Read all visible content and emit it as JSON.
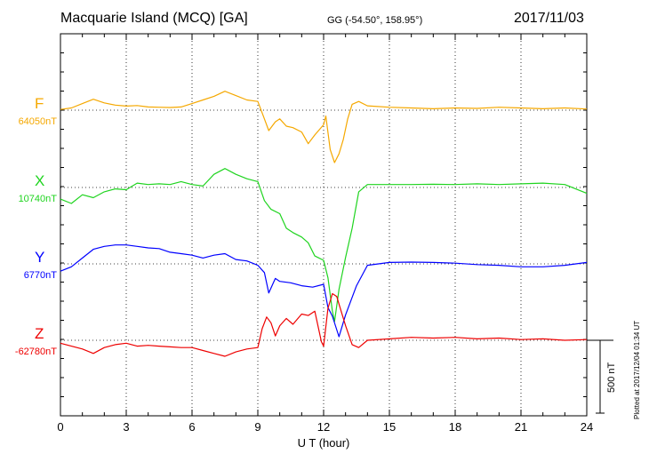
{
  "header": {
    "station": "Macquarie Island (MCQ)  [GA]",
    "coords": "GG (-54.50°, 158.95°)",
    "date": "2017/11/03"
  },
  "footer": {
    "plotted": "Plotted at 2017/12/04 01:34  UT",
    "scale_label": "500 nT"
  },
  "chart_data": {
    "type": "line",
    "xlabel": "U T (hour)",
    "xlim": [
      0,
      24
    ],
    "xticks": [
      "0",
      "3",
      "6",
      "9",
      "12",
      "15",
      "18",
      "21",
      "24"
    ],
    "scale_bar_nT": 500,
    "grid": true,
    "series": [
      {
        "name": "F",
        "baseline_label": "64050nT",
        "color": "#f5a800",
        "x": [
          0,
          0.5,
          1,
          1.5,
          2,
          2.5,
          3,
          3.5,
          4,
          4.5,
          5,
          5.5,
          6,
          6.5,
          7,
          7.5,
          8,
          8.5,
          9,
          9.3,
          9.5,
          9.8,
          10,
          10.3,
          10.6,
          11,
          11.3,
          11.6,
          12,
          12.1,
          12.3,
          12.5,
          12.7,
          12.9,
          13.1,
          13.3,
          13.6,
          14,
          15,
          16,
          17,
          18,
          19,
          20,
          21,
          22,
          23,
          24
        ],
        "values": [
          5,
          15,
          45,
          75,
          50,
          35,
          28,
          32,
          22,
          20,
          18,
          22,
          45,
          70,
          95,
          130,
          100,
          70,
          60,
          -60,
          -140,
          -80,
          -60,
          -110,
          -120,
          -150,
          -230,
          -170,
          -100,
          -40,
          -270,
          -360,
          -300,
          -200,
          -60,
          40,
          60,
          30,
          20,
          15,
          10,
          15,
          12,
          20,
          15,
          10,
          15,
          8
        ]
      },
      {
        "name": "X",
        "baseline_label": "10740nT",
        "color": "#1fd41f",
        "x": [
          0,
          0.5,
          1,
          1.5,
          2,
          2.5,
          3,
          3.5,
          4,
          4.5,
          5,
          5.5,
          6,
          6.5,
          7,
          7.5,
          8,
          8.5,
          9,
          9.3,
          9.6,
          10,
          10.3,
          10.6,
          11,
          11.3,
          11.6,
          12,
          12.2,
          12.4,
          12.5,
          12.7,
          13,
          13.3,
          13.6,
          14,
          15,
          16,
          17,
          18,
          19,
          20,
          21,
          22,
          23,
          24
        ],
        "values": [
          -80,
          -110,
          -50,
          -70,
          -30,
          -10,
          -15,
          30,
          20,
          25,
          20,
          40,
          20,
          10,
          90,
          130,
          90,
          60,
          40,
          -90,
          -150,
          -180,
          -280,
          -310,
          -340,
          -380,
          -470,
          -500,
          -620,
          -850,
          -920,
          -700,
          -480,
          -280,
          -30,
          20,
          20,
          20,
          22,
          20,
          25,
          20,
          25,
          30,
          20,
          -40
        ]
      },
      {
        "name": "Y",
        "baseline_label": "6770nT",
        "color": "#0000ff",
        "x": [
          0,
          0.5,
          1,
          1.5,
          2,
          2.5,
          3,
          3.5,
          4,
          4.5,
          5,
          5.5,
          6,
          6.5,
          7,
          7.5,
          8,
          8.5,
          9,
          9.3,
          9.5,
          9.8,
          10,
          10.5,
          11,
          11.5,
          12,
          12.2,
          12.4,
          12.7,
          13,
          13.5,
          14,
          15,
          16,
          17,
          18,
          19,
          20,
          21,
          22,
          23,
          24
        ],
        "values": [
          -50,
          -20,
          40,
          100,
          120,
          130,
          130,
          120,
          110,
          105,
          80,
          70,
          60,
          40,
          60,
          70,
          30,
          20,
          -10,
          -60,
          -200,
          -100,
          -120,
          -130,
          -150,
          -160,
          -140,
          -300,
          -360,
          -500,
          -350,
          -150,
          -10,
          10,
          12,
          10,
          5,
          -5,
          -10,
          -20,
          -20,
          -10,
          10
        ]
      },
      {
        "name": "Z",
        "baseline_label": "-62780nT",
        "color": "#ee0000",
        "x": [
          0,
          0.5,
          1,
          1.5,
          2,
          2.5,
          3,
          3.5,
          4,
          4.5,
          5,
          5.5,
          6,
          6.5,
          7,
          7.5,
          8,
          8.5,
          9,
          9.2,
          9.4,
          9.6,
          9.8,
          10,
          10.3,
          10.6,
          11,
          11.3,
          11.6,
          11.9,
          12,
          12.2,
          12.4,
          12.6,
          12.8,
          13,
          13.3,
          13.6,
          14,
          15,
          16,
          17,
          18,
          19,
          20,
          21,
          22,
          23,
          24
        ],
        "values": [
          -20,
          -40,
          -60,
          -90,
          -50,
          -30,
          -20,
          -40,
          -35,
          -40,
          -45,
          -50,
          -50,
          -70,
          -90,
          -110,
          -80,
          -60,
          -50,
          80,
          160,
          120,
          30,
          100,
          150,
          110,
          180,
          170,
          200,
          -10,
          -40,
          220,
          320,
          300,
          200,
          100,
          -30,
          -50,
          0,
          10,
          20,
          15,
          20,
          10,
          15,
          5,
          10,
          0,
          5
        ]
      }
    ]
  }
}
